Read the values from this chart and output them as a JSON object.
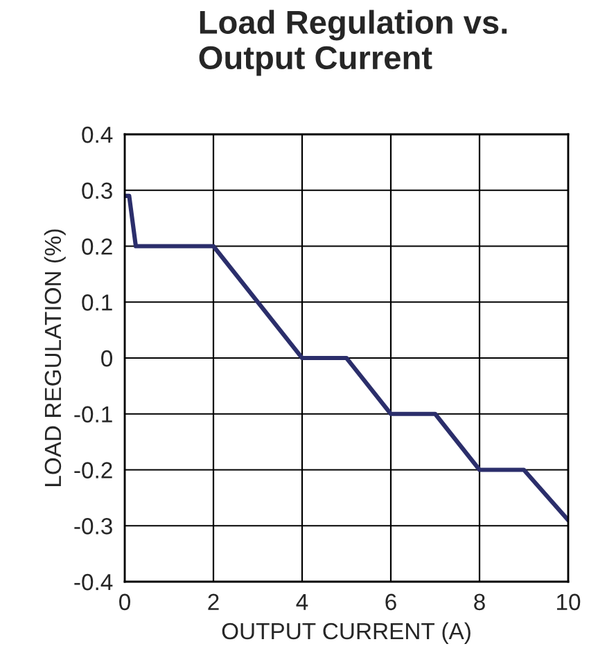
{
  "chart_data": {
    "type": "line",
    "title": "Load Regulation vs.\nOutput Current",
    "xlabel": "OUTPUT CURRENT (A)",
    "ylabel": "LOAD REGULATION (%)",
    "series": [
      {
        "color": "#2b2e6b",
        "x": [
          0,
          0.1,
          0.25,
          2,
          4,
          5,
          6,
          7,
          8,
          9,
          10
        ],
        "values": [
          0.29,
          0.29,
          0.2,
          0.2,
          0,
          0,
          -0.1,
          -0.1,
          -0.2,
          -0.2,
          -0.29
        ]
      }
    ],
    "xlim": [
      0,
      10
    ],
    "xticks": [
      0,
      2,
      4,
      6,
      8,
      10
    ],
    "ylim": [
      -0.4,
      0.4
    ],
    "yticks": [
      -0.4,
      -0.3,
      -0.2,
      -0.1,
      0,
      0.1,
      0.2,
      0.3,
      0.4
    ],
    "grid": true,
    "marker": "none",
    "line_style": "solid"
  }
}
